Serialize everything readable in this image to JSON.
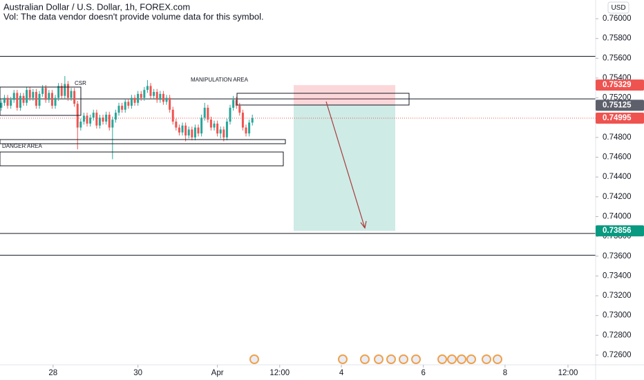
{
  "chart_data": {
    "type": "candlestick",
    "title": "Australian Dollar / U.S. Dollar, 1h, FOREX.com",
    "subtitle": "Vol: The data vendor doesn't provide volume data for this symbol.",
    "currency": "USD",
    "annotations": [
      "CSR",
      "MANIPULATION AREA",
      "DANGER AREA"
    ],
    "up_color": "#26a69a",
    "down_color": "#ef5350",
    "grid": false,
    "xlim": [
      -0.4,
      187
    ],
    "ylim": [
      0.72502,
      0.76189
    ],
    "xticks": [
      {
        "value": 16.3,
        "label": "28"
      },
      {
        "value": 43.0,
        "label": "30"
      },
      {
        "value": 68.0,
        "label": "Apr"
      },
      {
        "value": 87.6,
        "label": "12:00"
      },
      {
        "value": 107.0,
        "label": "4"
      },
      {
        "value": 132.8,
        "label": "6"
      },
      {
        "value": 158.5,
        "label": "8"
      },
      {
        "value": 178.3,
        "label": "12:00"
      }
    ],
    "yticks": [
      {
        "value": 0.76,
        "label": "0.76000"
      },
      {
        "value": 0.758,
        "label": "0.75800"
      },
      {
        "value": 0.756,
        "label": "0.75600"
      },
      {
        "value": 0.754,
        "label": "0.75400"
      },
      {
        "value": 0.752,
        "label": "0.75200"
      },
      {
        "value": 0.748,
        "label": "0.74800"
      },
      {
        "value": 0.746,
        "label": "0.74600"
      },
      {
        "value": 0.744,
        "label": "0.74400"
      },
      {
        "value": 0.742,
        "label": "0.74200"
      },
      {
        "value": 0.74,
        "label": "0.74000"
      },
      {
        "value": 0.738,
        "label": "0.73800"
      },
      {
        "value": 0.736,
        "label": "0.73600"
      },
      {
        "value": 0.734,
        "label": "0.73400"
      },
      {
        "value": 0.732,
        "label": "0.73200"
      },
      {
        "value": 0.73,
        "label": "0.73000"
      },
      {
        "value": 0.728,
        "label": "0.72800"
      },
      {
        "value": 0.726,
        "label": "0.72600"
      }
    ],
    "horizontal_lines": [
      0.7562,
      0.7519,
      0.7383,
      0.7361
    ],
    "position": {
      "stop": 0.75329,
      "entry": 0.75125,
      "target": 0.73856
    },
    "last_price": 0.74995,
    "price_labels": [
      {
        "value": 0.75329,
        "label": "0.75329",
        "color": "#ef5350"
      },
      {
        "value": 0.75125,
        "label": "0.75125",
        "color": "#5d606b"
      },
      {
        "value": 0.74995,
        "label": "0.74995",
        "color": "#ef5350"
      },
      {
        "value": 0.73856,
        "label": "0.73856",
        "color": "#089981"
      }
    ],
    "x": [
      0,
      1,
      2,
      3,
      4,
      5,
      6,
      7,
      8,
      9,
      10,
      11,
      12,
      13,
      14,
      15,
      16,
      17,
      18,
      19,
      20,
      21,
      22,
      23,
      24,
      25,
      26,
      27,
      28,
      29,
      30,
      31,
      32,
      33,
      34,
      35,
      36,
      37,
      38,
      39,
      40,
      41,
      42,
      43,
      44,
      45,
      46,
      47,
      48,
      49,
      50,
      51,
      52,
      53,
      54,
      55,
      56,
      57,
      58,
      59,
      60,
      61,
      62,
      63,
      64,
      65,
      66,
      67,
      68,
      69,
      70,
      71,
      72,
      73,
      74,
      75,
      76,
      77,
      78,
      79
    ],
    "open": [
      0.751,
      0.7515,
      0.752,
      0.7512,
      0.7518,
      0.7525,
      0.751,
      0.7522,
      0.7515,
      0.7528,
      0.752,
      0.7526,
      0.7512,
      0.7524,
      0.753,
      0.7518,
      0.7525,
      0.7512,
      0.752,
      0.7532,
      0.7522,
      0.7534,
      0.752,
      0.7527,
      0.7514,
      0.749,
      0.7496,
      0.7502,
      0.7494,
      0.75,
      0.7505,
      0.7492,
      0.75,
      0.7496,
      0.7503,
      0.749,
      0.7498,
      0.7505,
      0.7512,
      0.7508,
      0.7516,
      0.7512,
      0.752,
      0.7515,
      0.7524,
      0.752,
      0.7528,
      0.7532,
      0.7522,
      0.7526,
      0.7518,
      0.7524,
      0.7516,
      0.752,
      0.7508,
      0.7496,
      0.749,
      0.7485,
      0.7492,
      0.7482,
      0.7488,
      0.748,
      0.749,
      0.7484,
      0.75,
      0.751,
      0.7498,
      0.749,
      0.7494,
      0.7484,
      0.7488,
      0.748,
      0.7496,
      0.751,
      0.7518,
      0.7512,
      0.7505,
      0.749,
      0.7484,
      0.7495
    ],
    "high": [
      0.7518,
      0.7523,
      0.7523,
      0.7521,
      0.7528,
      0.7528,
      0.7525,
      0.7525,
      0.7531,
      0.7531,
      0.7529,
      0.7529,
      0.7527,
      0.7533,
      0.7533,
      0.7528,
      0.7528,
      0.7523,
      0.7535,
      0.7535,
      0.7542,
      0.7537,
      0.753,
      0.753,
      0.7517,
      0.7499,
      0.7505,
      0.7505,
      0.7503,
      0.7508,
      0.7508,
      0.7503,
      0.7503,
      0.7506,
      0.7506,
      0.7501,
      0.7508,
      0.7515,
      0.7515,
      0.7519,
      0.7519,
      0.7523,
      0.7523,
      0.7527,
      0.7527,
      0.7531,
      0.7538,
      0.7535,
      0.7529,
      0.7529,
      0.7527,
      0.7527,
      0.7523,
      0.7523,
      0.7511,
      0.7499,
      0.7493,
      0.7495,
      0.7495,
      0.7491,
      0.7491,
      0.7493,
      0.7493,
      0.7503,
      0.7515,
      0.7513,
      0.7501,
      0.7497,
      0.7497,
      0.7491,
      0.7491,
      0.7499,
      0.7513,
      0.7522,
      0.7521,
      0.7515,
      0.7508,
      0.7493,
      0.7498,
      0.7503
    ],
    "low": [
      0.7507,
      0.7512,
      0.7509,
      0.7509,
      0.7515,
      0.7507,
      0.7507,
      0.7512,
      0.7512,
      0.7517,
      0.7517,
      0.7509,
      0.7509,
      0.7521,
      0.7515,
      0.7515,
      0.7509,
      0.7509,
      0.7517,
      0.7519,
      0.7519,
      0.7517,
      0.7517,
      0.7511,
      0.7468,
      0.7487,
      0.7493,
      0.7491,
      0.7491,
      0.7497,
      0.7489,
      0.7489,
      0.7493,
      0.7493,
      0.7487,
      0.7458,
      0.7495,
      0.7502,
      0.7505,
      0.7505,
      0.7509,
      0.7509,
      0.7512,
      0.7512,
      0.7517,
      0.7517,
      0.7525,
      0.7519,
      0.7519,
      0.7515,
      0.7515,
      0.7513,
      0.7513,
      0.7505,
      0.7493,
      0.7487,
      0.7482,
      0.7482,
      0.7476,
      0.7479,
      0.7477,
      0.7477,
      0.7481,
      0.7481,
      0.7497,
      0.7495,
      0.7487,
      0.7487,
      0.7481,
      0.7479,
      0.7476,
      0.7477,
      0.7493,
      0.7507,
      0.7509,
      0.7502,
      0.7487,
      0.7481,
      0.7481,
      0.7492
    ],
    "close": [
      0.7515,
      0.752,
      0.7512,
      0.7518,
      0.7525,
      0.751,
      0.7522,
      0.7515,
      0.7528,
      0.752,
      0.7526,
      0.7512,
      0.7524,
      0.753,
      0.7518,
      0.7525,
      0.7512,
      0.752,
      0.7532,
      0.7522,
      0.7534,
      0.752,
      0.7527,
      0.7514,
      0.749,
      0.7496,
      0.7502,
      0.7494,
      0.75,
      0.7505,
      0.7492,
      0.75,
      0.7496,
      0.7503,
      0.749,
      0.7498,
      0.7505,
      0.7512,
      0.7508,
      0.7516,
      0.7512,
      0.752,
      0.7515,
      0.7524,
      0.752,
      0.7528,
      0.7532,
      0.7522,
      0.7526,
      0.7518,
      0.7524,
      0.7516,
      0.752,
      0.7508,
      0.7496,
      0.749,
      0.7485,
      0.7492,
      0.7482,
      0.7488,
      0.748,
      0.749,
      0.7484,
      0.75,
      0.751,
      0.7498,
      0.749,
      0.7494,
      0.7484,
      0.7488,
      0.748,
      0.7496,
      0.751,
      0.7518,
      0.7512,
      0.7505,
      0.749,
      0.7484,
      0.7495,
      0.74995
    ]
  }
}
